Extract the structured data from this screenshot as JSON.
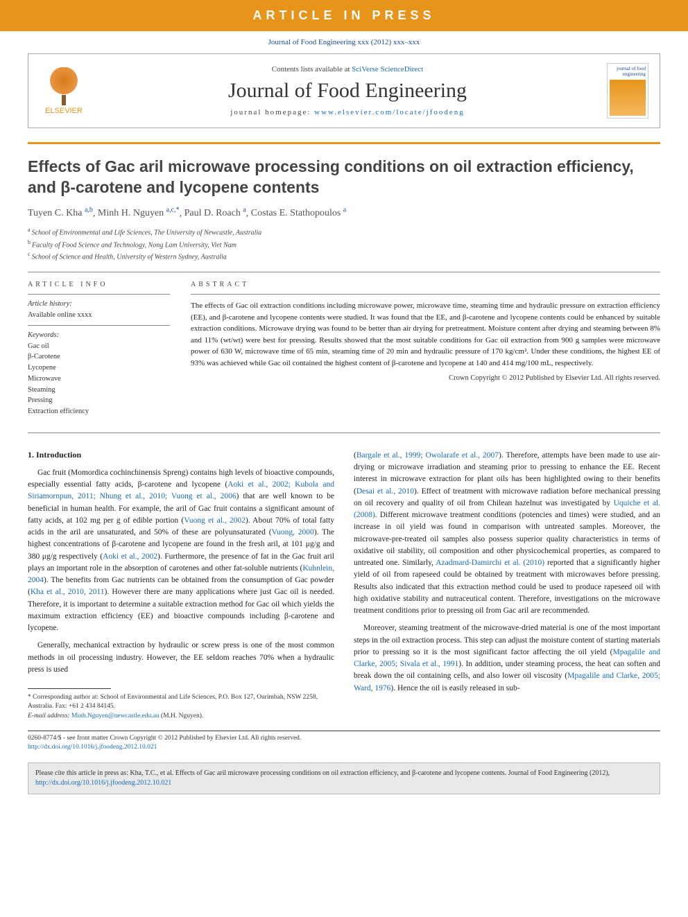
{
  "banner": {
    "text": "ARTICLE IN PRESS",
    "bg_color": "#e8941a",
    "text_color": "#ffffff"
  },
  "citation_top": "Journal of Food Engineering xxx (2012) xxx–xxx",
  "header": {
    "publisher": "ELSEVIER",
    "contents_prefix": "Contents lists available at ",
    "contents_link": "SciVerse ScienceDirect",
    "journal_name": "Journal of Food Engineering",
    "homepage_prefix": "journal homepage: ",
    "homepage_url": "www.elsevier.com/locate/jfoodeng",
    "cover_title": "journal of food engineering"
  },
  "title": "Effects of Gac aril microwave processing conditions on oil extraction efficiency, and β-carotene and lycopene contents",
  "authors_html": "Tuyen C. Kha|a,b|, Minh H. Nguyen|a,c,*|, Paul D. Roach|a|, Costas E. Stathopoulos|a|",
  "authors": [
    {
      "name": "Tuyen C. Kha",
      "affil": "a,b"
    },
    {
      "name": "Minh H. Nguyen",
      "affil": "a,c,",
      "corr": true
    },
    {
      "name": "Paul D. Roach",
      "affil": "a"
    },
    {
      "name": "Costas E. Stathopoulos",
      "affil": "a"
    }
  ],
  "affiliations": [
    {
      "key": "a",
      "text": "School of Environmental and Life Sciences, The University of Newcastle, Australia"
    },
    {
      "key": "b",
      "text": "Faculty of Food Science and Technology, Nong Lam University, Viet Nam"
    },
    {
      "key": "c",
      "text": "School of Science and Health, University of Western Sydney, Australia"
    }
  ],
  "info": {
    "heading": "ARTICLE INFO",
    "history_label": "Article history:",
    "history_line": "Available online xxxx",
    "keywords_label": "Keywords:",
    "keywords": [
      "Gac oil",
      "β-Carotene",
      "Lycopene",
      "Microwave",
      "Steaming",
      "Pressing",
      "Extraction efficiency"
    ]
  },
  "abstract": {
    "heading": "ABSTRACT",
    "text": "The effects of Gac oil extraction conditions including microwave power, microwave time, steaming time and hydraulic pressure on extraction efficiency (EE), and β-carotene and lycopene contents were studied. It was found that the EE, and β-carotene and lycopene contents could be enhanced by suitable extraction conditions. Microwave drying was found to be better than air drying for pretreatment. Moisture content after drying and steaming between 8% and 11% (wt/wt) were best for pressing. Results showed that the most suitable conditions for Gac oil extraction from 900 g samples were microwave power of 630 W, microwave time of 65 min, steaming time of 20 min and hydraulic pressure of 170 kg/cm². Under these conditions, the highest EE of 93% was achieved while Gac oil contained the highest content of β-carotene and lycopene at 140 and 414 mg/100 mL, respectively.",
    "copyright": "Crown Copyright © 2012 Published by Elsevier Ltd. All rights reserved."
  },
  "body": {
    "section1_heading": "1. Introduction",
    "col1_p1a": "Gac fruit (Momordica cochinchinensis Spreng) contains high levels of bioactive compounds, especially essential fatty acids, β-carotene and lycopene (",
    "col1_p1_ref1": "Aoki et al., 2002; Kubola and Siriamornpun, 2011; Nhung et al., 2010; Vuong et al., 2006",
    "col1_p1b": ") that are well known to be beneficial in human health. For example, the aril of Gac fruit contains a significant amount of fatty acids, at 102 mg per g of edible portion (",
    "col1_p1_ref2": "Vuong et al., 2002",
    "col1_p1c": "). About 70% of total fatty acids in the aril are unsaturated, and 50% of these are polyunsaturated (",
    "col1_p1_ref3": "Vuong, 2000",
    "col1_p1d": "). The highest concentrations of β-carotene and lycopene are found in the fresh aril, at 101 μg/g and 380 μg/g respectively (",
    "col1_p1_ref4": "Aoki et al., 2002",
    "col1_p1e": "). Furthermore, the presence of fat in the Gac fruit aril plays an important role in the absorption of carotenes and other fat-soluble nutrients (",
    "col1_p1_ref5": "Kuhnlein, 2004",
    "col1_p1f": "). The benefits from Gac nutrients can be obtained from the consumption of Gac powder (",
    "col1_p1_ref6": "Kha et al., 2010, 2011",
    "col1_p1g": "). However there are many applications where just Gac oil is needed. Therefore, it is important to determine a suitable extraction method for Gac oil which yields the maximum extraction efficiency (EE) and bioactive compounds including β-carotene and lycopene.",
    "col1_p2": "Generally, mechanical extraction by hydraulic or screw press is one of the most common methods in oil processing industry. However, the EE seldom reaches 70% when a hydraulic press is used",
    "col2_p1a": "(",
    "col2_p1_ref1": "Bargale et al., 1999; Owolarafe et al., 2007",
    "col2_p1b": "). Therefore, attempts have been made to use air-drying or microwave irradiation and steaming prior to pressing to enhance the EE. Recent interest in microwave extraction for plant oils has been highlighted owing to their benefits (",
    "col2_p1_ref2": "Desai et al., 2010",
    "col2_p1c": "). Effect of treatment with microwave radiation before mechanical pressing on oil recovery and quality of oil from Chilean hazelnut was investigated by ",
    "col2_p1_ref3": "Uquiche et al. (2008)",
    "col2_p1d": ". Different microwave treatment conditions (potencies and times) were studied, and an increase in oil yield was found in comparison with untreated samples. Moreover, the microwave-pre-treated oil samples also possess superior quality characteristics in terms of oxidative oil stability, oil composition and other physicochemical properties, as compared to untreated one. Similarly, ",
    "col2_p1_ref4": "Azadmard-Damirchi et al. (2010)",
    "col2_p1e": " reported that a significantly higher yield of oil from rapeseed could be obtained by treatment with microwaves before pressing. Results also indicated that this extraction method could be used to produce rapeseed oil with high oxidative stability and nutraceutical content. Therefore, investigations on the microwave treatment conditions prior to pressing oil from Gac aril are recommended.",
    "col2_p2a": "Moreover, steaming treatment of the microwave-dried material is one of the most important steps in the oil extraction process. This step can adjust the moisture content of starting materials prior to pressing so it is the most significant factor affecting the oil yield (",
    "col2_p2_ref1": "Mpagalile and Clarke, 2005; Sivala et al., 1991",
    "col2_p2b": "). In addition, under steaming process, the heat can soften and break down the oil containing cells, and also lower oil viscosity (",
    "col2_p2_ref2": "Mpagalile and Clarke, 2005; Ward, 1976",
    "col2_p2c": "). Hence the oil is easily released in sub-"
  },
  "footnote": {
    "corr_label": "* Corresponding author at: School of Environmental and Life Sciences, P.O. Box 127, Ourimbah, NSW 2258, Australia. Fax: +61 2 434 84145.",
    "email_label": "E-mail address:",
    "email": "Minh.Nguyen@newcastle.edu.au",
    "email_who": "(M.H. Nguyen)."
  },
  "bottom": {
    "issn_line": "0260-8774/$ - see front matter Crown Copyright © 2012 Published by Elsevier Ltd. All rights reserved.",
    "doi": "http://dx.doi.org/10.1016/j.jfoodeng.2012.10.021"
  },
  "cite_box": {
    "text_a": "Please cite this article in press as: Kha, T.C., et al. Effects of Gac aril microwave processing conditions on oil extraction efficiency, and β-carotene and lycopene contents. Journal of Food Engineering (2012), ",
    "doi": "http://dx.doi.org/10.1016/j.jfoodeng.2012.10.021"
  },
  "colors": {
    "orange": "#e8941a",
    "link_blue": "#1a6bb8",
    "dark_blue": "#1a4d8f",
    "text": "#222222",
    "grey_bg": "#e9e9e9"
  }
}
